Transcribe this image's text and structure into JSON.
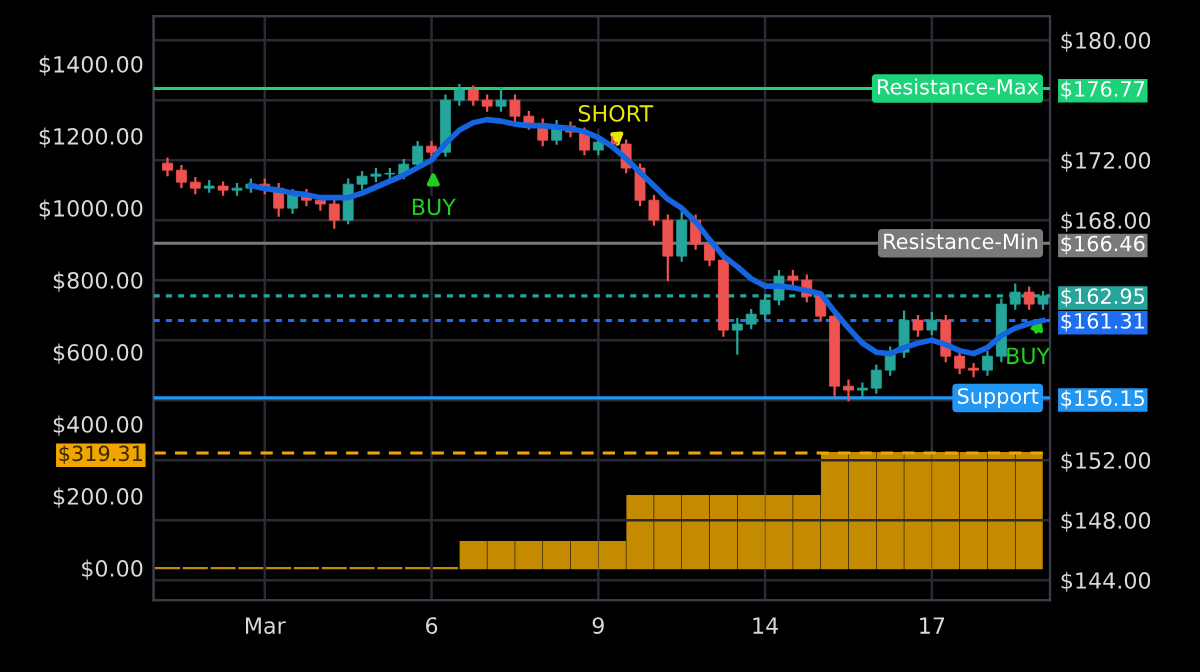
{
  "chart_data": {
    "type": "candlestick",
    "categories": [
      null,
      null,
      null,
      null,
      null,
      null,
      null,
      "Mar",
      null,
      null,
      null,
      null,
      null,
      null,
      null,
      null,
      null,
      null,
      null,
      "6",
      null,
      null,
      null,
      null,
      null,
      null,
      null,
      null,
      null,
      null,
      null,
      "9",
      null,
      null,
      null,
      null,
      null,
      null,
      null,
      null,
      null,
      null,
      null,
      "14",
      null,
      null,
      null,
      null,
      null,
      null,
      null,
      null,
      null,
      null,
      null,
      "17",
      null,
      null,
      null,
      null,
      null,
      null,
      null,
      null
    ],
    "ylim": [
      -89,
      1533
    ],
    "yticks": [
      {
        "value": 0,
        "label": "$0.00"
      },
      {
        "value": 200,
        "label": "$200.00"
      },
      {
        "value": 319.31,
        "label": "$319.31"
      },
      {
        "value": 400,
        "label": "$400.00"
      },
      {
        "value": 600,
        "label": "$600.00"
      },
      {
        "value": 800,
        "label": "$800.00"
      },
      {
        "value": 1000,
        "label": "$1000.00"
      },
      {
        "value": 1200,
        "label": "$1200.00"
      },
      {
        "value": 1400,
        "label": "$1400.00"
      }
    ],
    "y2lim": [
      142.67,
      181.6
    ],
    "y2ticks": [
      {
        "value": 144,
        "label": "$144.00"
      },
      {
        "value": 148,
        "label": "$148.00"
      },
      {
        "value": 152,
        "label": "$152.00"
      },
      {
        "value": 156,
        "label": null
      },
      {
        "value": 156.15,
        "label": "$156.15"
      },
      {
        "value": 160,
        "label": null
      },
      {
        "value": 161.31,
        "label": "$161.31"
      },
      {
        "value": 162.95,
        "label": "$162.95"
      },
      {
        "value": 164,
        "label": null
      },
      {
        "value": 166.46,
        "label": "$166.46"
      },
      {
        "value": 168,
        "label": "$168.00"
      },
      {
        "value": 172,
        "label": "$172.00"
      },
      {
        "value": 176,
        "label": null
      },
      {
        "value": 176.77,
        "label": "$176.77"
      },
      {
        "value": 180,
        "label": "$180.00"
      }
    ],
    "grid": true,
    "series": [
      {
        "type": "bar",
        "axis": "y",
        "color": "#c48a00",
        "values": [
          0,
          null,
          0,
          null,
          0,
          null,
          0,
          null,
          0,
          null,
          0,
          null,
          0,
          null,
          0,
          null,
          0,
          null,
          0,
          null,
          0,
          null,
          72,
          null,
          72,
          null,
          72,
          null,
          72,
          null,
          72,
          null,
          72,
          null,
          200,
          null,
          200,
          null,
          200,
          null,
          200,
          null,
          200,
          null,
          200,
          null,
          200,
          null,
          319.31,
          null,
          319.31,
          null,
          319.31,
          null,
          319.31,
          null,
          319.31,
          null,
          319.31,
          null,
          319.31,
          null,
          319.31,
          null
        ]
      },
      {
        "type": "candlestick",
        "axis": "y2",
        "colors": [
          "#ef5350",
          "#ef5350",
          "#ef5350",
          "#26a69a",
          "#ef5350",
          "#26a69a",
          "#26a69a",
          "#ef5350",
          "#ef5350",
          "#26a69a",
          "#ef5350",
          "#ef5350",
          "#ef5350",
          "#26a69a",
          "#26a69a",
          "#26a69a",
          "#26a69a",
          "#26a69a",
          "#26a69a",
          "#ef5350",
          "#26a69a",
          "#26a69a",
          "#ef5350",
          "#ef5350",
          "#26a69a",
          "#ef5350",
          "#ef5350",
          "#ef5350",
          "#26a69a",
          "#ef5350",
          "#ef5350",
          "#26a69a",
          "#ef5350",
          "#ef5350",
          "#ef5350",
          "#ef5350",
          "#ef5350",
          "#26a69a",
          "#ef5350",
          "#ef5350",
          "#ef5350",
          "#26a69a",
          "#26a69a",
          "#26a69a",
          "#26a69a",
          "#ef5350",
          "#ef5350",
          "#ef5350",
          "#ef5350",
          "#ef5350",
          "#26a69a",
          "#26a69a",
          "#26a69a",
          "#26a69a",
          "#ef5350",
          "#26a69a",
          "#ef5350",
          "#ef5350",
          "#ef5350",
          "#26a69a",
          "#26a69a",
          "#26a69a",
          "#ef5350",
          "#26a69a"
        ],
        "ohlc": [
          [
            171.8,
            172.1,
            171.0,
            171.33
          ],
          [
            171.33,
            171.6,
            170.2,
            170.53
          ],
          [
            170.53,
            170.8,
            169.8,
            170.13
          ],
          [
            170.13,
            170.6,
            169.9,
            170.27
          ],
          [
            170.27,
            170.5,
            169.7,
            170.0
          ],
          [
            170.0,
            170.4,
            169.7,
            170.13
          ],
          [
            170.13,
            170.7,
            169.9,
            170.4
          ],
          [
            170.4,
            170.7,
            169.8,
            170.13
          ],
          [
            170.13,
            170.4,
            168.3,
            168.8
          ],
          [
            168.8,
            170.0,
            168.5,
            169.73
          ],
          [
            169.73,
            170.0,
            169.0,
            169.33
          ],
          [
            169.33,
            169.6,
            168.7,
            169.07
          ],
          [
            169.07,
            169.3,
            167.5,
            168.0
          ],
          [
            168.0,
            170.7,
            167.8,
            170.4
          ],
          [
            170.4,
            171.2,
            170.1,
            170.93
          ],
          [
            170.93,
            171.4,
            170.6,
            171.07
          ],
          [
            171.07,
            171.4,
            170.7,
            171.07
          ],
          [
            171.07,
            172.0,
            170.8,
            171.73
          ],
          [
            171.73,
            173.2,
            171.5,
            172.93
          ],
          [
            172.93,
            173.2,
            172.2,
            172.53
          ],
          [
            172.53,
            176.3,
            172.3,
            176.0
          ],
          [
            176.0,
            177.0,
            175.7,
            176.67
          ],
          [
            176.67,
            176.9,
            175.7,
            176.0
          ],
          [
            176.0,
            176.3,
            175.3,
            175.6
          ],
          [
            175.6,
            176.8,
            175.3,
            176.0
          ],
          [
            176.0,
            176.3,
            174.6,
            174.93
          ],
          [
            174.93,
            175.2,
            174.1,
            174.4
          ],
          [
            174.4,
            174.7,
            173.0,
            173.33
          ],
          [
            173.33,
            174.6,
            173.1,
            174.27
          ],
          [
            174.27,
            174.5,
            173.6,
            173.87
          ],
          [
            173.87,
            174.1,
            172.4,
            172.67
          ],
          [
            172.67,
            173.5,
            172.4,
            173.2
          ],
          [
            173.2,
            173.5,
            172.8,
            173.07
          ],
          [
            173.07,
            173.3,
            171.2,
            171.47
          ],
          [
            171.47,
            171.7,
            169.0,
            169.33
          ],
          [
            169.33,
            169.6,
            167.7,
            168.0
          ],
          [
            168.0,
            168.3,
            164.0,
            165.6
          ],
          [
            165.6,
            168.5,
            165.3,
            168.0
          ],
          [
            168.0,
            168.3,
            166.1,
            166.4
          ],
          [
            166.4,
            166.7,
            165.0,
            165.33
          ],
          [
            165.33,
            165.6,
            160.3,
            160.67
          ],
          [
            160.67,
            161.4,
            159.1,
            161.07
          ],
          [
            161.07,
            162.0,
            160.8,
            161.73
          ],
          [
            161.73,
            163.0,
            161.4,
            162.67
          ],
          [
            162.67,
            164.6,
            162.4,
            164.27
          ],
          [
            164.27,
            164.6,
            163.7,
            164.0
          ],
          [
            164.0,
            164.3,
            162.6,
            162.93
          ],
          [
            162.93,
            163.2,
            161.3,
            161.6
          ],
          [
            161.6,
            161.9,
            156.3,
            156.93
          ],
          [
            156.93,
            157.3,
            156.0,
            156.67
          ],
          [
            156.67,
            157.1,
            156.3,
            156.8
          ],
          [
            156.8,
            158.3,
            156.5,
            158.0
          ],
          [
            158.0,
            159.5,
            157.7,
            159.2
          ],
          [
            159.2,
            161.9,
            158.9,
            161.33
          ],
          [
            161.33,
            161.6,
            160.3,
            160.67
          ],
          [
            160.67,
            161.8,
            160.4,
            161.33
          ],
          [
            161.33,
            161.6,
            158.6,
            158.93
          ],
          [
            158.93,
            159.2,
            157.8,
            158.13
          ],
          [
            158.13,
            158.4,
            157.6,
            158.0
          ],
          [
            158.0,
            159.2,
            157.7,
            158.93
          ],
          [
            158.93,
            162.7,
            158.6,
            162.4
          ],
          [
            162.4,
            163.7,
            162.1,
            163.2
          ],
          [
            163.2,
            163.5,
            162.1,
            162.4
          ],
          [
            162.4,
            163.2,
            162.1,
            162.95
          ]
        ]
      },
      {
        "type": "line",
        "axis": "y2",
        "color": "#1565e0",
        "values": [
          null,
          null,
          null,
          null,
          null,
          null,
          170.3,
          170.1,
          170.0,
          169.8,
          169.7,
          169.5,
          169.5,
          169.5,
          169.8,
          170.2,
          170.6,
          171.0,
          171.5,
          172.0,
          173.1,
          174.0,
          174.5,
          174.7,
          174.6,
          174.4,
          174.3,
          174.3,
          174.2,
          174.1,
          173.9,
          173.5,
          172.9,
          172.1,
          171.2,
          170.3,
          169.4,
          168.8,
          167.9,
          166.7,
          165.6,
          164.9,
          164.1,
          163.6,
          163.6,
          163.5,
          163.3,
          163.1,
          161.9,
          160.8,
          159.8,
          159.2,
          159.1,
          159.5,
          159.8,
          160.0,
          159.7,
          159.3,
          159.1,
          159.5,
          160.3,
          160.8,
          161.1,
          161.31
        ]
      }
    ],
    "ref_lines": [
      {
        "axis": "y2",
        "value": 176.77,
        "label": "Resistance-Max",
        "color": "#1ed27a",
        "line_style": "solid"
      },
      {
        "axis": "y2",
        "value": 166.46,
        "label": "Resistance-Min",
        "color": "#7a7a7a",
        "line_style": "solid"
      },
      {
        "axis": "y2",
        "value": 162.95,
        "label": null,
        "color": "#26a69a",
        "line_style": "dotted"
      },
      {
        "axis": "y2",
        "value": 161.31,
        "label": null,
        "color": "#1e6ff0",
        "line_style": "dotted"
      },
      {
        "axis": "y2",
        "value": 156.15,
        "label": "Support",
        "color": "#2196f3",
        "line_style": "solid"
      },
      {
        "axis": "y",
        "value": 319.31,
        "label": null,
        "color": "#f0a500",
        "line_style": "dashed"
      }
    ],
    "annotations": [
      "BUY",
      "SHORT",
      "BUY"
    ]
  }
}
